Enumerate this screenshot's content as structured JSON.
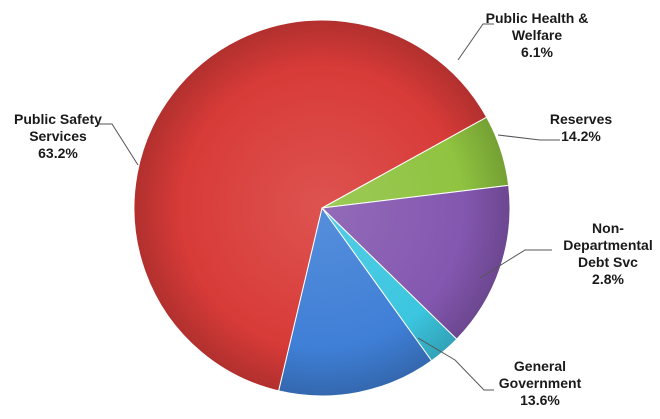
{
  "chart_data": {
    "type": "pie",
    "title": "",
    "start_angle_deg": 61.1,
    "direction": "clockwise",
    "slices": [
      {
        "label_lines": [
          "Public Health &",
          "Welfare",
          "6.1%"
        ],
        "value": 6.1,
        "color": "#8fc340",
        "name_key": "public-health-welfare"
      },
      {
        "label_lines": [
          "Reserves",
          "14.2%"
        ],
        "value": 14.2,
        "color": "#8457b0",
        "name_key": "reserves"
      },
      {
        "label_lines": [
          "Non-",
          "Departmental",
          "Debt Svc",
          "2.8%"
        ],
        "value": 2.8,
        "color": "#3cc6e0",
        "name_key": "non-departmental-debt-svc"
      },
      {
        "label_lines": [
          "General",
          "Government",
          "13.6%"
        ],
        "value": 13.6,
        "color": "#3f7fd6",
        "name_key": "general-government"
      },
      {
        "label_lines": [
          "Public Safety",
          "Services",
          "63.2%"
        ],
        "value": 63.2,
        "color": "#d83b38",
        "name_key": "public-safety-services"
      }
    ]
  }
}
